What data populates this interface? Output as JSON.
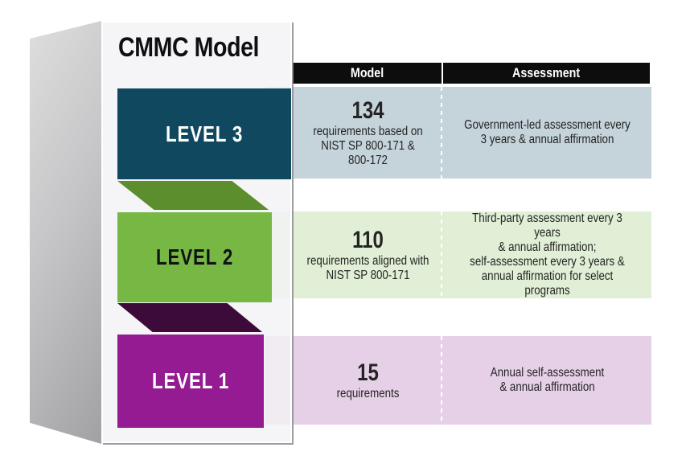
{
  "title": "CMMC Model",
  "panel": {
    "levels": [
      {
        "label": "LEVEL 3",
        "color": "#10495f",
        "text_color": "#ffffff"
      },
      {
        "label": "LEVEL 2",
        "color": "#77b845",
        "text_color": "#121212"
      },
      {
        "label": "LEVEL 1",
        "color": "#941b91",
        "text_color": "#ffffff"
      }
    ],
    "connectors": [
      {
        "name": "level3-to-level2",
        "color": "#5c8e2d"
      },
      {
        "name": "level2-to-level1",
        "color": "#3c0b3a"
      }
    ]
  },
  "table": {
    "header": {
      "model": "Model",
      "assessment": "Assessment",
      "background": "#0d0d0d",
      "text_color": "#ffffff"
    },
    "rows": [
      {
        "level": "LEVEL 3",
        "row_color": "#c5d3da",
        "requirement_count": "134",
        "requirement_lines": [
          "requirements based on",
          "NIST SP 800-171 &",
          "800-172"
        ],
        "assessment_lines": [
          "Government-led assessment every",
          "3 years & annual affirmation"
        ]
      },
      {
        "level": "LEVEL 2",
        "row_color": "#e0efd5",
        "requirement_count": "110",
        "requirement_lines": [
          "requirements aligned with",
          "NIST SP 800-171"
        ],
        "assessment_lines": [
          "Third-party assessment every 3 years",
          "& annual affirmation;",
          "self-assessment every 3 years &",
          "annual affirmation for select programs"
        ]
      },
      {
        "level": "LEVEL 1",
        "row_color": "#e6d0e7",
        "requirement_count": "15",
        "requirement_lines": [
          "requirements"
        ],
        "assessment_lines": [
          "Annual self-assessment",
          "& annual affirmation"
        ]
      }
    ]
  }
}
